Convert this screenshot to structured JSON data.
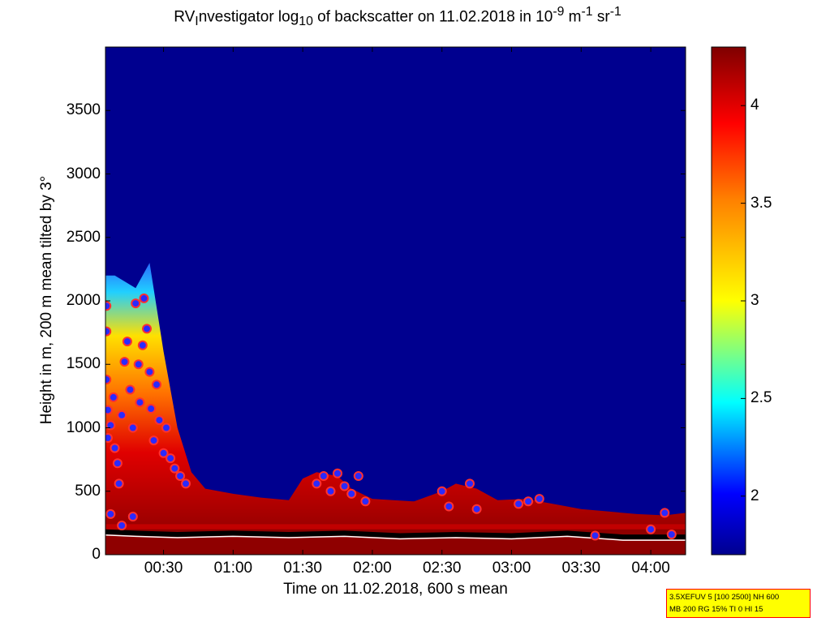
{
  "title_parts": {
    "a": "RV",
    "b": "I",
    "c": "nvestigator log",
    "d": "10",
    "e": " of backscatter on 11.02.2018 in 10",
    "f": "-9",
    "g": " m",
    "h": "-1",
    "i": " sr",
    "j": "-1"
  },
  "info_box": {
    "line1": "3.5XEFUV 5 [100 2500] NH 600",
    "line2": "MB 200 RG 15% TI 0 HI 15"
  },
  "colors": {
    "background": "#00008f",
    "cloud_marker_fill": "#2a2aff",
    "cloud_marker_edge": "#ff3030",
    "overlay_line": "#000000"
  },
  "chart_data": {
    "type": "heatmap",
    "xlabel": "Time on 11.02.2018, 600 s mean",
    "ylabel": "Height in m, 200 m mean tilted by 3°",
    "x_unit": "hours after 00:00",
    "xlim": [
      0.083,
      4.25
    ],
    "ylim": [
      0,
      4000
    ],
    "x_ticks": [
      {
        "value": 0.5,
        "label": "00:30"
      },
      {
        "value": 1.0,
        "label": "01:00"
      },
      {
        "value": 1.5,
        "label": "01:30"
      },
      {
        "value": 2.0,
        "label": "02:00"
      },
      {
        "value": 2.5,
        "label": "02:30"
      },
      {
        "value": 3.0,
        "label": "03:00"
      },
      {
        "value": 3.5,
        "label": "03:30"
      },
      {
        "value": 4.0,
        "label": "04:00"
      }
    ],
    "y_ticks": [
      {
        "value": 0,
        "label": "0"
      },
      {
        "value": 500,
        "label": "500"
      },
      {
        "value": 1000,
        "label": "1000"
      },
      {
        "value": 1500,
        "label": "1500"
      },
      {
        "value": 2000,
        "label": "2000"
      },
      {
        "value": 2500,
        "label": "2500"
      },
      {
        "value": 3000,
        "label": "3000"
      },
      {
        "value": 3500,
        "label": "3500"
      }
    ],
    "colorbar": {
      "range": [
        1.7,
        4.3
      ],
      "colormap": "jet",
      "ticks": [
        {
          "value": 2,
          "label": "2"
        },
        {
          "value": 2.5,
          "label": "2.5"
        },
        {
          "value": 3,
          "label": "3"
        },
        {
          "value": 3.5,
          "label": "3.5"
        },
        {
          "value": 4,
          "label": "4"
        }
      ]
    },
    "layer_top": [
      [
        0.083,
        2200
      ],
      [
        0.15,
        2200
      ],
      [
        0.3,
        2100
      ],
      [
        0.4,
        2300
      ],
      [
        0.5,
        1600
      ],
      [
        0.6,
        1000
      ],
      [
        0.7,
        650
      ],
      [
        0.8,
        520
      ],
      [
        1.0,
        480
      ],
      [
        1.2,
        450
      ],
      [
        1.4,
        430
      ],
      [
        1.5,
        600
      ],
      [
        1.6,
        650
      ],
      [
        1.75,
        620
      ],
      [
        1.85,
        520
      ],
      [
        2.0,
        440
      ],
      [
        2.3,
        420
      ],
      [
        2.5,
        500
      ],
      [
        2.6,
        560
      ],
      [
        2.75,
        520
      ],
      [
        2.9,
        430
      ],
      [
        3.1,
        440
      ],
      [
        3.3,
        400
      ],
      [
        3.5,
        360
      ],
      [
        3.7,
        340
      ],
      [
        3.9,
        320
      ],
      [
        4.1,
        310
      ],
      [
        4.25,
        330
      ]
    ],
    "cloud_base_markers": [
      {
        "x": 0.09,
        "y": 1960
      },
      {
        "x": 0.09,
        "y": 1760
      },
      {
        "x": 0.09,
        "y": 1380
      },
      {
        "x": 0.1,
        "y": 1140
      },
      {
        "x": 0.1,
        "y": 920
      },
      {
        "x": 0.12,
        "y": 1020
      },
      {
        "x": 0.14,
        "y": 1240
      },
      {
        "x": 0.15,
        "y": 840
      },
      {
        "x": 0.17,
        "y": 720
      },
      {
        "x": 0.18,
        "y": 560
      },
      {
        "x": 0.2,
        "y": 1100
      },
      {
        "x": 0.22,
        "y": 1520
      },
      {
        "x": 0.24,
        "y": 1680
      },
      {
        "x": 0.26,
        "y": 1300
      },
      {
        "x": 0.28,
        "y": 1000
      },
      {
        "x": 0.3,
        "y": 1980
      },
      {
        "x": 0.32,
        "y": 1500
      },
      {
        "x": 0.33,
        "y": 1200
      },
      {
        "x": 0.35,
        "y": 1650
      },
      {
        "x": 0.36,
        "y": 2020
      },
      {
        "x": 0.38,
        "y": 1780
      },
      {
        "x": 0.4,
        "y": 1440
      },
      {
        "x": 0.41,
        "y": 1150
      },
      {
        "x": 0.43,
        "y": 900
      },
      {
        "x": 0.45,
        "y": 1340
      },
      {
        "x": 0.47,
        "y": 1060
      },
      {
        "x": 0.5,
        "y": 800
      },
      {
        "x": 0.52,
        "y": 1000
      },
      {
        "x": 0.55,
        "y": 760
      },
      {
        "x": 0.58,
        "y": 680
      },
      {
        "x": 0.62,
        "y": 620
      },
      {
        "x": 0.66,
        "y": 560
      },
      {
        "x": 0.12,
        "y": 320
      },
      {
        "x": 0.2,
        "y": 230
      },
      {
        "x": 0.28,
        "y": 300
      },
      {
        "x": 1.6,
        "y": 560
      },
      {
        "x": 1.65,
        "y": 620
      },
      {
        "x": 1.7,
        "y": 500
      },
      {
        "x": 1.75,
        "y": 640
      },
      {
        "x": 1.8,
        "y": 540
      },
      {
        "x": 1.85,
        "y": 480
      },
      {
        "x": 1.9,
        "y": 620
      },
      {
        "x": 1.95,
        "y": 420
      },
      {
        "x": 2.5,
        "y": 500
      },
      {
        "x": 2.55,
        "y": 380
      },
      {
        "x": 2.7,
        "y": 560
      },
      {
        "x": 2.75,
        "y": 360
      },
      {
        "x": 3.05,
        "y": 400
      },
      {
        "x": 3.12,
        "y": 420
      },
      {
        "x": 3.2,
        "y": 440
      },
      {
        "x": 3.6,
        "y": 150
      },
      {
        "x": 4.0,
        "y": 200
      },
      {
        "x": 4.1,
        "y": 330
      },
      {
        "x": 4.15,
        "y": 160
      }
    ],
    "surface_layer_top_line": [
      [
        0.083,
        180
      ],
      [
        0.3,
        170
      ],
      [
        0.6,
        160
      ],
      [
        1.0,
        170
      ],
      [
        1.4,
        160
      ],
      [
        1.8,
        170
      ],
      [
        2.2,
        150
      ],
      [
        2.6,
        160
      ],
      [
        3.0,
        150
      ],
      [
        3.4,
        170
      ],
      [
        3.8,
        140
      ],
      [
        4.25,
        140
      ]
    ]
  }
}
